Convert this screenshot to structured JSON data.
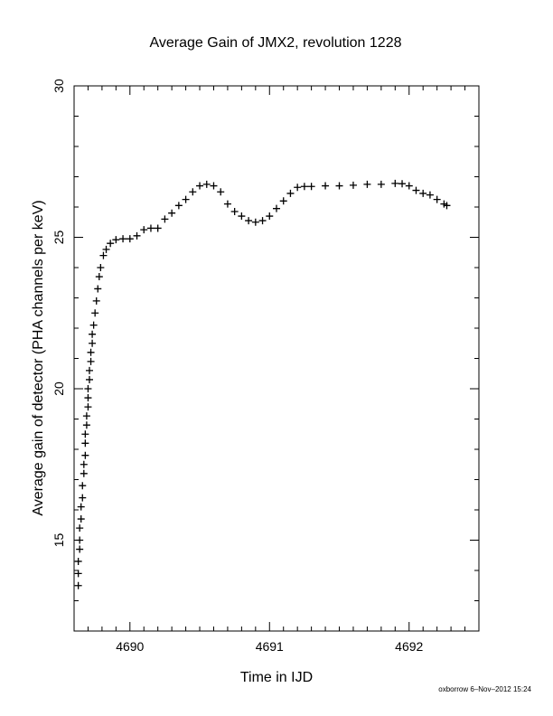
{
  "chart_data": {
    "type": "scatter",
    "title": "Average Gain of JMX2, revolution 1228",
    "xlabel": "Time in IJD",
    "ylabel": "Average gain of detector (PHA channels per keV)",
    "xlim": [
      4689.6,
      4692.5
    ],
    "ylim": [
      12,
      30
    ],
    "xticks": [
      4690,
      4691,
      4692
    ],
    "yticks": [
      15,
      20,
      25,
      30
    ],
    "marker": "plus",
    "grid": false,
    "points": [
      [
        4689.63,
        13.5
      ],
      [
        4689.63,
        13.9
      ],
      [
        4689.63,
        14.3
      ],
      [
        4689.64,
        14.7
      ],
      [
        4689.64,
        15.0
      ],
      [
        4689.64,
        15.4
      ],
      [
        4689.65,
        15.7
      ],
      [
        4689.65,
        16.1
      ],
      [
        4689.66,
        16.4
      ],
      [
        4689.66,
        16.8
      ],
      [
        4689.67,
        17.2
      ],
      [
        4689.67,
        17.5
      ],
      [
        4689.68,
        17.8
      ],
      [
        4689.68,
        18.2
      ],
      [
        4689.68,
        18.5
      ],
      [
        4689.69,
        18.8
      ],
      [
        4689.69,
        19.1
      ],
      [
        4689.7,
        19.4
      ],
      [
        4689.7,
        19.7
      ],
      [
        4689.7,
        20.0
      ],
      [
        4689.71,
        20.3
      ],
      [
        4689.71,
        20.6
      ],
      [
        4689.72,
        20.9
      ],
      [
        4689.72,
        21.2
      ],
      [
        4689.73,
        21.5
      ],
      [
        4689.73,
        21.8
      ],
      [
        4689.74,
        22.1
      ],
      [
        4689.75,
        22.5
      ],
      [
        4689.76,
        22.9
      ],
      [
        4689.77,
        23.3
      ],
      [
        4689.78,
        23.7
      ],
      [
        4689.79,
        24.0
      ],
      [
        4689.81,
        24.4
      ],
      [
        4689.83,
        24.6
      ],
      [
        4689.86,
        24.8
      ],
      [
        4689.9,
        24.92
      ],
      [
        4689.95,
        24.95
      ],
      [
        4690.0,
        24.95
      ],
      [
        4690.05,
        25.05
      ],
      [
        4690.1,
        25.25
      ],
      [
        4690.15,
        25.3
      ],
      [
        4690.2,
        25.3
      ],
      [
        4690.25,
        25.6
      ],
      [
        4690.3,
        25.8
      ],
      [
        4690.35,
        26.05
      ],
      [
        4690.4,
        26.25
      ],
      [
        4690.45,
        26.5
      ],
      [
        4690.5,
        26.7
      ],
      [
        4690.55,
        26.75
      ],
      [
        4690.6,
        26.7
      ],
      [
        4690.65,
        26.5
      ],
      [
        4690.7,
        26.1
      ],
      [
        4690.75,
        25.85
      ],
      [
        4690.8,
        25.7
      ],
      [
        4690.85,
        25.55
      ],
      [
        4690.9,
        25.5
      ],
      [
        4690.95,
        25.55
      ],
      [
        4691.0,
        25.7
      ],
      [
        4691.05,
        25.95
      ],
      [
        4691.1,
        26.2
      ],
      [
        4691.15,
        26.45
      ],
      [
        4691.2,
        26.65
      ],
      [
        4691.25,
        26.68
      ],
      [
        4691.3,
        26.68
      ],
      [
        4691.4,
        26.7
      ],
      [
        4691.5,
        26.7
      ],
      [
        4691.6,
        26.72
      ],
      [
        4691.7,
        26.75
      ],
      [
        4691.8,
        26.75
      ],
      [
        4691.9,
        26.78
      ],
      [
        4691.95,
        26.77
      ],
      [
        4692.0,
        26.7
      ],
      [
        4692.05,
        26.55
      ],
      [
        4692.1,
        26.45
      ],
      [
        4692.15,
        26.4
      ],
      [
        4692.2,
        26.25
      ],
      [
        4692.25,
        26.1
      ],
      [
        4692.27,
        26.05
      ]
    ]
  },
  "footer": "oxborrow  6–Nov–2012 15:24"
}
